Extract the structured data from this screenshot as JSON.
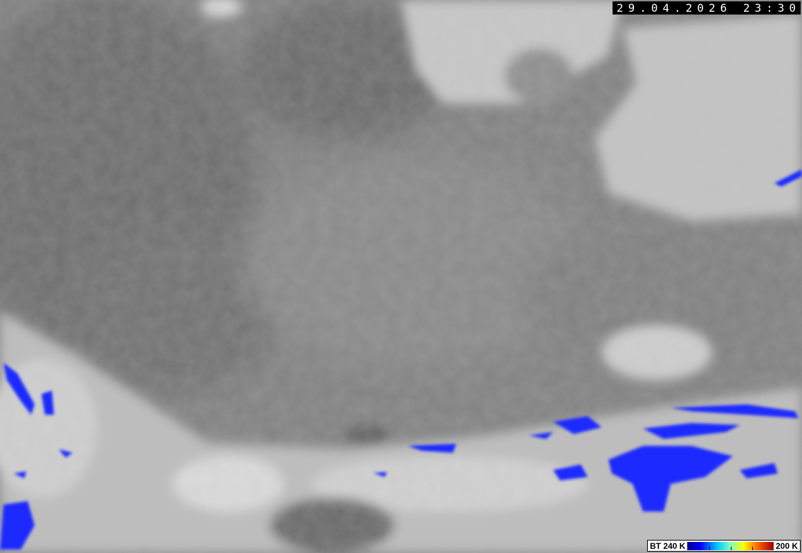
{
  "timestamp": "29.04.2026 23:30",
  "legend": {
    "low_label": "BT 240 K",
    "high_label": "200 K",
    "colors": [
      "#00008a",
      "#0000ff",
      "#00c8ff",
      "#80ffc0",
      "#ffff00",
      "#ff6000",
      "#a00000"
    ]
  },
  "image": {
    "type": "infrared satellite image",
    "palette_cold_cloud": "#1a2cff"
  }
}
